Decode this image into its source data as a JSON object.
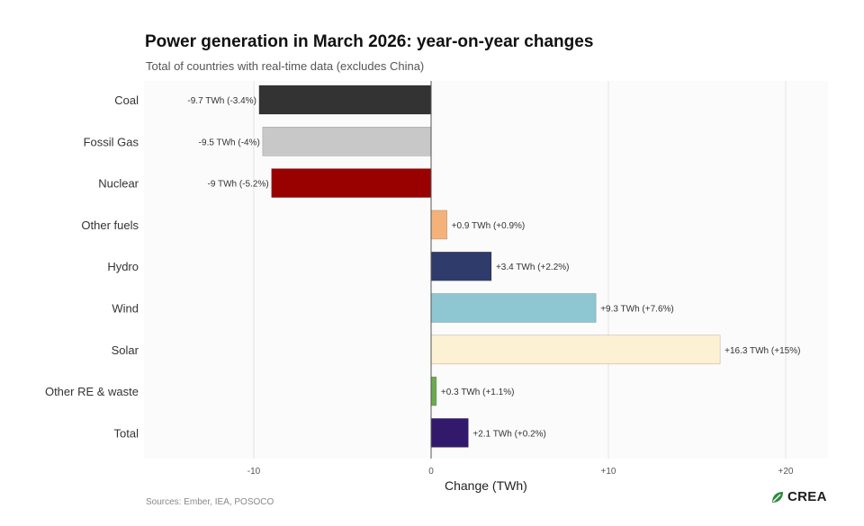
{
  "chart_data": {
    "type": "bar",
    "orientation": "horizontal",
    "title": "Power generation in March 2026: year-on-year changes",
    "subtitle": "Total of countries with real-time data (excludes China)",
    "xlabel": "Change (TWh)",
    "ylabel": "",
    "xlim": [
      -16,
      23
    ],
    "xticks": [
      -10,
      0,
      10,
      20
    ],
    "xtick_labels": [
      "-10",
      "0",
      "+10",
      "+20"
    ],
    "grid": true,
    "categories": [
      "Coal",
      "Fossil Gas",
      "Nuclear",
      "Other fuels",
      "Hydro",
      "Wind",
      "Solar",
      "Other RE & waste",
      "Total"
    ],
    "values": [
      -9.7,
      -9.5,
      -9,
      0.9,
      3.4,
      9.3,
      16.3,
      0.3,
      2.1
    ],
    "value_labels": [
      "-9.7 TWh (-3.4%)",
      "-9.5 TWh (-4%)",
      "-9 TWh (-5.2%)",
      "+0.9 TWh (+0.9%)",
      "+3.4 TWh (+2.2%)",
      "+9.3 TWh (+7.6%)",
      "+16.3 TWh (+15%)",
      "+0.3 TWh (+1.1%)",
      "+2.1 TWh (+0.2%)"
    ],
    "colors": [
      "#333333",
      "#c8c8c8",
      "#990000",
      "#f4b27a",
      "#2f3b6b",
      "#8ec6d1",
      "#fdf1d4",
      "#6aab4f",
      "#33196b"
    ]
  },
  "footer": {
    "source": "Sources: Ember, IEA, POSOCO",
    "brand": "CREA",
    "brand_color": "#2e8a3e"
  }
}
